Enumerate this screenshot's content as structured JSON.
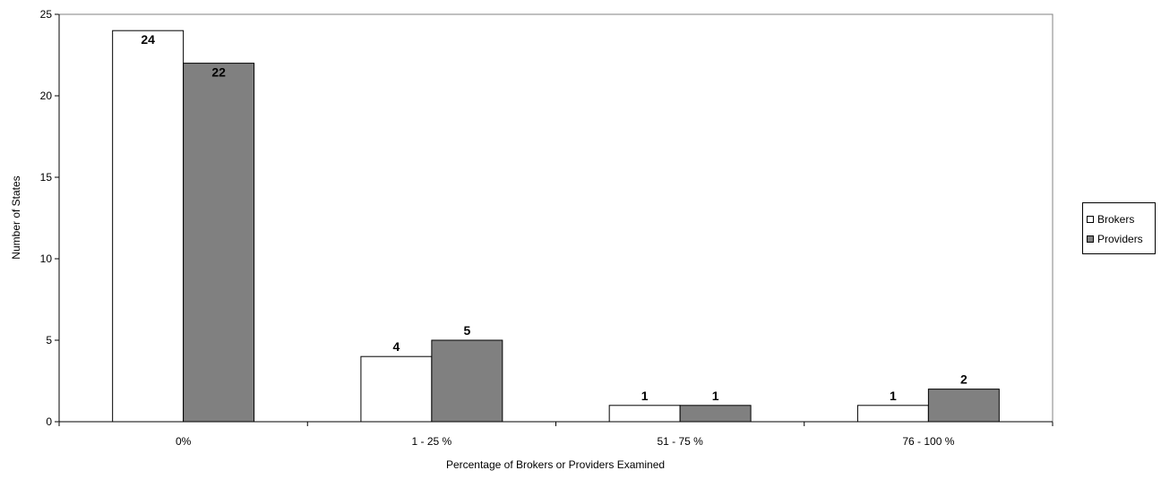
{
  "chart_data": {
    "type": "bar",
    "categories": [
      "0%",
      "1 - 25 %",
      "51 - 75 %",
      "76 - 100 %"
    ],
    "series": [
      {
        "name": "Brokers",
        "values": [
          24,
          4,
          1,
          1
        ],
        "color": "#ffffff"
      },
      {
        "name": "Providers",
        "values": [
          22,
          5,
          1,
          2
        ],
        "color": "#808080"
      }
    ],
    "data_labels": [
      [
        "24",
        "4",
        "1",
        "1"
      ],
      [
        "22",
        "5",
        "1",
        "2"
      ]
    ],
    "xlabel": "Percentage of Brokers or Providers Examined",
    "ylabel": "Number of States",
    "ylim": [
      0,
      25
    ],
    "yticks": [
      "0",
      "5",
      "10",
      "15",
      "20",
      "25"
    ],
    "grid": false,
    "legend_position": "right"
  },
  "legend": {
    "items": [
      {
        "label": "Brokers",
        "color": "#ffffff"
      },
      {
        "label": "Providers",
        "color": "#808080"
      }
    ]
  }
}
